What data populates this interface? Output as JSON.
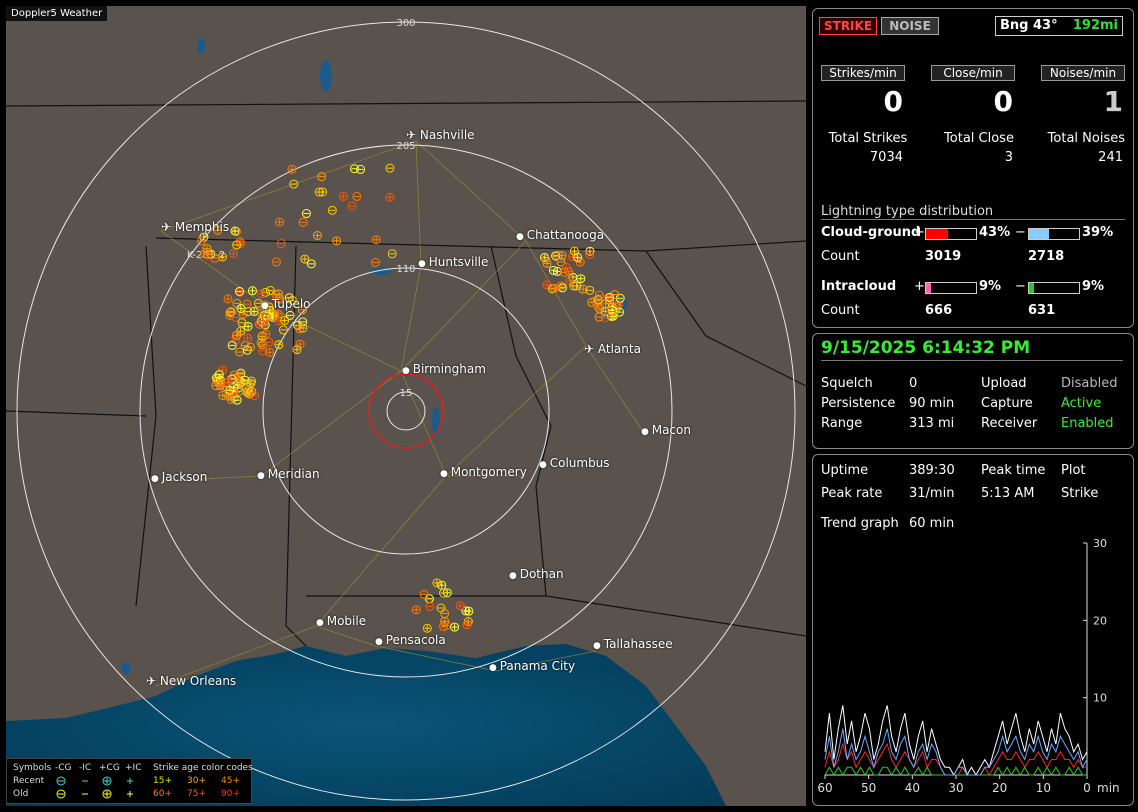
{
  "brand": "Doppler5 Weather",
  "map": {
    "range_labels": {
      "r15": "15",
      "r110": "110",
      "r205": "205",
      "r300": "300"
    },
    "marker_label": "K-281-2",
    "cities": [
      {
        "name": "Nashville",
        "kind": "airport"
      },
      {
        "name": "Memphis",
        "kind": "airport"
      },
      {
        "name": "Chattanooga",
        "kind": "city"
      },
      {
        "name": "Huntsville",
        "kind": "city"
      },
      {
        "name": "Tupelo",
        "kind": "city"
      },
      {
        "name": "Atlanta",
        "kind": "airport"
      },
      {
        "name": "Birmingham",
        "kind": "city"
      },
      {
        "name": "Macon",
        "kind": "city"
      },
      {
        "name": "Jackson",
        "kind": "city"
      },
      {
        "name": "Meridian",
        "kind": "city"
      },
      {
        "name": "Montgomery",
        "kind": "city"
      },
      {
        "name": "Columbus",
        "kind": "city"
      },
      {
        "name": "Dothan",
        "kind": "city"
      },
      {
        "name": "Mobile",
        "kind": "city"
      },
      {
        "name": "Pensacola",
        "kind": "city"
      },
      {
        "name": "Tallahassee",
        "kind": "city"
      },
      {
        "name": "Panama City",
        "kind": "city"
      },
      {
        "name": "New Orleans",
        "kind": "airport"
      }
    ]
  },
  "legend": {
    "header": [
      "Symbols",
      "-CG",
      "-IC",
      "+CG",
      "+IC",
      "Strike age color codes"
    ],
    "recent_label": "Recent",
    "old_label": "Old",
    "recent_ages": [
      "15+",
      "30+",
      "45+"
    ],
    "old_ages": [
      "60+",
      "75+",
      "90+"
    ],
    "colors": {
      "recent1": "#e6e600",
      "recent2": "#ffaa00",
      "recent3": "#ff8800",
      "old1": "#ff7700",
      "old2": "#ff5500",
      "old3": "#ff3300",
      "cyan": "#33dddd",
      "yellow": "#ffff33"
    }
  },
  "top": {
    "strike_label": "STRIKE",
    "noise_label": "NOISE",
    "bearing_label": "Bng 43°",
    "distance_label": "192mi",
    "strikes_min_label": "Strikes/min",
    "close_min_label": "Close/min",
    "noises_min_label": "Noises/min",
    "strikes_min": "0",
    "close_min": "0",
    "noises_min": "1",
    "total_strikes_label": "Total Strikes",
    "total_close_label": "Total Close",
    "total_noises_label": "Total Noises",
    "total_strikes": "7034",
    "total_close": "3",
    "total_noises": "241",
    "dist_title": "Lightning type distribution",
    "cg_label": "Cloud-ground",
    "ic_label": "Intracloud",
    "count_label": "Count",
    "plus": "+",
    "minus": "−",
    "cg_pos_pct": "43%",
    "cg_neg_pct": "39%",
    "ic_pos_pct": "9%",
    "ic_neg_pct": "9%",
    "cg_pos_frac": 0.43,
    "cg_neg_frac": 0.39,
    "ic_pos_frac": 0.09,
    "ic_neg_frac": 0.09,
    "cg_pos_count": "3019",
    "cg_neg_count": "2718",
    "ic_pos_count": "666",
    "ic_neg_count": "631",
    "colors": {
      "cg_pos": "#ff0000",
      "cg_neg": "#88ccff",
      "ic_pos": "#ff66aa",
      "ic_neg": "#22cc22"
    }
  },
  "status": {
    "datetime": "9/15/2025 6:14:32 PM",
    "squelch_label": "Squelch",
    "squelch": "0",
    "persistence_label": "Persistence",
    "persistence": "90 min",
    "range_label": "Range",
    "range": "313 mi",
    "upload_label": "Upload",
    "upload": "Disabled",
    "capture_label": "Capture",
    "capture": "Active",
    "receiver_label": "Receiver",
    "receiver": "Enabled"
  },
  "stats": {
    "uptime_label": "Uptime",
    "uptime": "389:30",
    "peak_time_label": "Peak time",
    "peak_time": "5:13 AM",
    "plot_label": "Plot",
    "plot": "Strike",
    "peak_rate_label": "Peak rate",
    "peak_rate": "31/min",
    "trend_label": "Trend graph",
    "trend": "60 min"
  },
  "chart_data": {
    "type": "line",
    "xlabel": "min",
    "x_ticks": [
      "60",
      "50",
      "40",
      "30",
      "20",
      "10",
      "0"
    ],
    "y_ticks": [
      "10",
      "20",
      "30"
    ],
    "xlim": [
      60,
      0
    ],
    "ylim": [
      0,
      30
    ],
    "series": [
      {
        "color": "#ffffff",
        "values": [
          3,
          8,
          2,
          6,
          9,
          4,
          7,
          3,
          5,
          8,
          6,
          2,
          4,
          7,
          9,
          5,
          3,
          6,
          8,
          4,
          2,
          5,
          7,
          3,
          6,
          4,
          2,
          1,
          1,
          0,
          1,
          2,
          0,
          1,
          0,
          1,
          2,
          1,
          3,
          5,
          7,
          4,
          6,
          8,
          5,
          3,
          6,
          4,
          7,
          5,
          3,
          6,
          4,
          8,
          6,
          5,
          3,
          4,
          2,
          3
        ]
      },
      {
        "color": "#ff2222",
        "values": [
          1,
          3,
          1,
          2,
          4,
          2,
          3,
          1,
          2,
          3,
          2,
          1,
          2,
          3,
          4,
          2,
          1,
          2,
          3,
          2,
          1,
          2,
          3,
          1,
          2,
          2,
          1,
          0,
          0,
          0,
          0,
          1,
          0,
          0,
          0,
          0,
          1,
          0,
          1,
          2,
          3,
          2,
          2,
          3,
          2,
          1,
          2,
          2,
          3,
          2,
          1,
          2,
          2,
          3,
          2,
          2,
          1,
          2,
          1,
          1
        ]
      },
      {
        "color": "#22cc22",
        "values": [
          0,
          1,
          0,
          1,
          0,
          1,
          1,
          0,
          1,
          0,
          1,
          0,
          0,
          1,
          1,
          0,
          1,
          0,
          1,
          0,
          0,
          1,
          0,
          1,
          0,
          0,
          0,
          0,
          0,
          0,
          0,
          0,
          0,
          0,
          0,
          0,
          0,
          0,
          0,
          1,
          0,
          1,
          0,
          1,
          0,
          1,
          0,
          0,
          1,
          0,
          1,
          0,
          1,
          0,
          0,
          1,
          0,
          1,
          0,
          0
        ]
      },
      {
        "color": "#66aaff",
        "values": [
          2,
          5,
          1,
          3,
          6,
          2,
          4,
          2,
          3,
          5,
          3,
          1,
          3,
          4,
          6,
          3,
          2,
          4,
          5,
          2,
          1,
          3,
          4,
          2,
          4,
          3,
          1,
          0,
          0,
          0,
          1,
          1,
          0,
          0,
          0,
          0,
          1,
          1,
          2,
          3,
          5,
          3,
          4,
          5,
          3,
          2,
          4,
          3,
          5,
          3,
          2,
          4,
          3,
          5,
          4,
          3,
          2,
          3,
          1,
          2
        ]
      }
    ]
  }
}
